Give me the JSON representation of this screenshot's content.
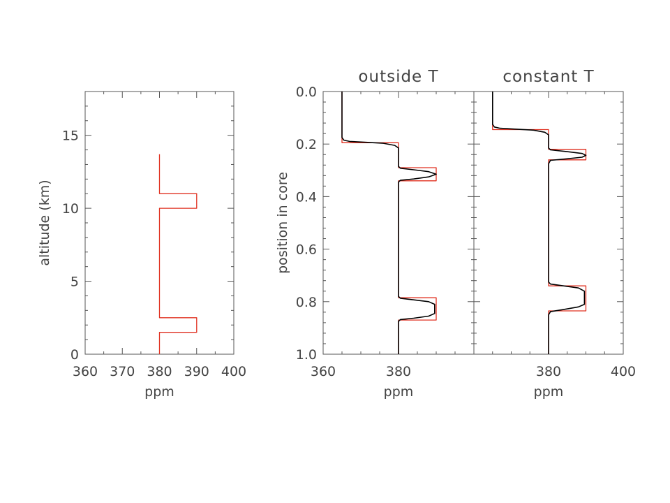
{
  "chart_data": [
    {
      "type": "line",
      "title": "",
      "xlabel": "ppm",
      "ylabel": "altitude (km)",
      "xlim": [
        360,
        400
      ],
      "ylim": [
        0,
        18
      ],
      "xticks": [
        360,
        370,
        380,
        390,
        400
      ],
      "xtick_labels": [
        "360",
        "370",
        "380",
        "390",
        "400"
      ],
      "yticks": [
        0,
        5,
        10,
        15
      ],
      "ytick_labels": [
        "0",
        "5",
        "10",
        "15"
      ],
      "grid": false,
      "series": [
        {
          "color": "#e03020",
          "x": [
            380,
            380,
            390,
            390,
            380,
            380,
            390,
            390,
            380,
            380
          ],
          "y": [
            0,
            1.5,
            1.5,
            2.5,
            2.5,
            10,
            10,
            11,
            11,
            13.7
          ]
        }
      ]
    },
    {
      "type": "line",
      "title": "outside T",
      "xlabel": "ppm",
      "ylabel": "position in core",
      "xlim": [
        360,
        400
      ],
      "ylim": [
        1.0,
        0.0
      ],
      "xticks": [
        360,
        380
      ],
      "xtick_labels": [
        "360",
        "380"
      ],
      "yticks": [
        0.0,
        0.2,
        0.4,
        0.6,
        0.8,
        1.0
      ],
      "ytick_labels": [
        "0.0",
        "0.2",
        "0.4",
        "0.6",
        "0.8",
        "1.0"
      ],
      "grid": false,
      "series": [
        {
          "color": "#e03020",
          "x": [
            365,
            365,
            380,
            380,
            390,
            390,
            380,
            380,
            390,
            390,
            380,
            380
          ],
          "y": [
            0.0,
            0.195,
            0.195,
            0.29,
            0.29,
            0.34,
            0.34,
            0.785,
            0.785,
            0.87,
            0.87,
            1.0
          ]
        },
        {
          "color": "#000000",
          "x": [
            365,
            365,
            365.5,
            367,
            371,
            376,
            379,
            380,
            380,
            380.5,
            384,
            388,
            390,
            388,
            384,
            380.5,
            380,
            380,
            380.5,
            384,
            388,
            389.6,
            389.6,
            388,
            384,
            380.5,
            380,
            380
          ],
          "y": [
            0.0,
            0.175,
            0.185,
            0.19,
            0.193,
            0.197,
            0.205,
            0.215,
            0.285,
            0.292,
            0.298,
            0.305,
            0.315,
            0.325,
            0.333,
            0.338,
            0.345,
            0.78,
            0.787,
            0.793,
            0.8,
            0.81,
            0.845,
            0.855,
            0.863,
            0.868,
            0.875,
            1.0
          ]
        }
      ]
    },
    {
      "type": "line",
      "title": "constant T",
      "xlabel": "ppm",
      "ylabel": "",
      "xlim": [
        360,
        400
      ],
      "ylim": [
        1.0,
        0.0
      ],
      "xticks": [
        380,
        400
      ],
      "xtick_labels": [
        "380",
        "400"
      ],
      "yticks": [
        0.0,
        0.2,
        0.4,
        0.6,
        0.8,
        1.0
      ],
      "ytick_labels": [],
      "grid": false,
      "series": [
        {
          "color": "#e03020",
          "x": [
            365,
            365,
            380,
            380,
            390,
            390,
            380,
            380,
            390,
            390,
            380,
            380
          ],
          "y": [
            0.0,
            0.145,
            0.145,
            0.22,
            0.22,
            0.26,
            0.26,
            0.74,
            0.74,
            0.835,
            0.835,
            1.0
          ]
        },
        {
          "color": "#000000",
          "x": [
            365,
            365,
            365.5,
            367,
            371,
            376,
            379,
            380,
            380,
            380.5,
            385,
            389,
            390,
            389,
            385,
            380.5,
            380,
            380,
            380.5,
            384,
            388,
            389.6,
            389.6,
            388,
            384,
            380.5,
            380,
            380
          ],
          "y": [
            0.0,
            0.125,
            0.135,
            0.14,
            0.143,
            0.147,
            0.155,
            0.165,
            0.215,
            0.222,
            0.229,
            0.236,
            0.243,
            0.25,
            0.256,
            0.262,
            0.275,
            0.725,
            0.733,
            0.74,
            0.748,
            0.76,
            0.81,
            0.82,
            0.83,
            0.838,
            0.85,
            1.0
          ]
        }
      ]
    }
  ]
}
